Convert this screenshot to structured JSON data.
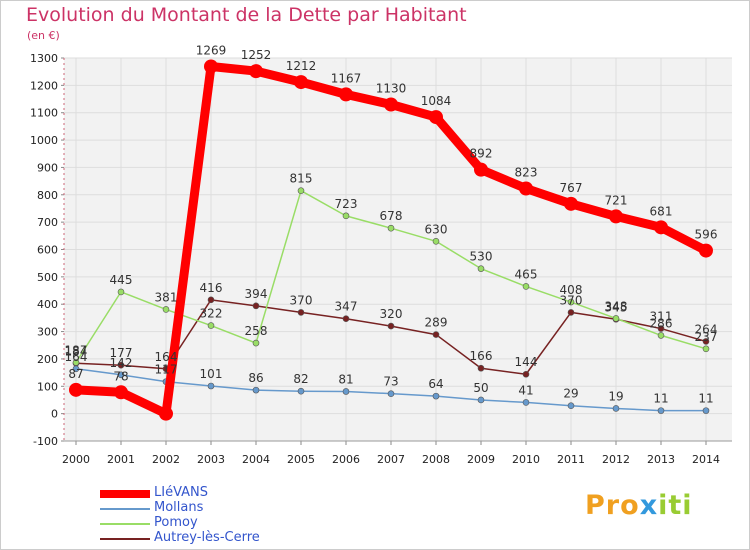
{
  "title": "Evolution du Montant de la Dette par Habitant",
  "unit": "(en €)",
  "brand": "Proxiti",
  "brand_colors": [
    "#f0a020",
    "#f0a020",
    "#f0a020",
    "#3399dd",
    "#99cc33",
    "#99cc33",
    "#99cc33"
  ],
  "chart_data": {
    "type": "line",
    "title": "Evolution du Montant de la Dette par Habitant",
    "ylabel": "(en €)",
    "xlabel": "",
    "ylim": [
      -100,
      1300
    ],
    "yticks": [
      "-100",
      "0",
      "100",
      "200",
      "300",
      "400",
      "500",
      "600",
      "700",
      "800",
      "900",
      "1000",
      "1100",
      "1200",
      "1300"
    ],
    "grid": true,
    "legend_position": "bottom-left",
    "x": [
      "2000",
      "2001",
      "2002",
      "2003",
      "2004",
      "2005",
      "2006",
      "2007",
      "2008",
      "2009",
      "2010",
      "2011",
      "2012",
      "2013",
      "2014"
    ],
    "series": [
      {
        "name": "LIéVANS",
        "color": "#ff0000",
        "width": 9,
        "marker": 7,
        "values": [
          87,
          78,
          0,
          1269,
          1252,
          1212,
          1167,
          1130,
          1084,
          892,
          823,
          767,
          721,
          681,
          596
        ],
        "labels": [
          "87",
          "78",
          "",
          "1269",
          "1252",
          "1212",
          "1167",
          "1130",
          "1084",
          "892",
          "823",
          "767",
          "721",
          "681",
          "596"
        ]
      },
      {
        "name": "Mollans",
        "color": "#6699cc",
        "width": 1.5,
        "marker": 3,
        "values": [
          164,
          142,
          117,
          101,
          86,
          82,
          81,
          73,
          64,
          50,
          41,
          29,
          19,
          11,
          11
        ],
        "labels": [
          "164",
          "142",
          "117",
          "101",
          "86",
          "82",
          "81",
          "73",
          "64",
          "50",
          "41",
          "29",
          "19",
          "11",
          "11"
        ]
      },
      {
        "name": "Pomoy",
        "color": "#99dd66",
        "width": 1.5,
        "marker": 3,
        "values": [
          187,
          445,
          381,
          322,
          258,
          815,
          723,
          678,
          630,
          530,
          465,
          408,
          348,
          286,
          237
        ],
        "labels": [
          "187",
          "445",
          "381",
          "322",
          "258",
          "815",
          "723",
          "678",
          "630",
          "530",
          "465",
          "408",
          "348",
          "286",
          "237"
        ]
      },
      {
        "name": "Autrey-lès-Cerre",
        "color": "#772222",
        "width": 1.5,
        "marker": 3,
        "values": [
          184,
          177,
          164,
          416,
          394,
          370,
          347,
          320,
          289,
          166,
          144,
          370,
          345,
          311,
          264
        ],
        "labels": [
          "184",
          "177",
          "164",
          "416",
          "394",
          "370",
          "347",
          "320",
          "289",
          "166",
          "144",
          "370",
          "345",
          "311",
          "264"
        ]
      }
    ]
  }
}
